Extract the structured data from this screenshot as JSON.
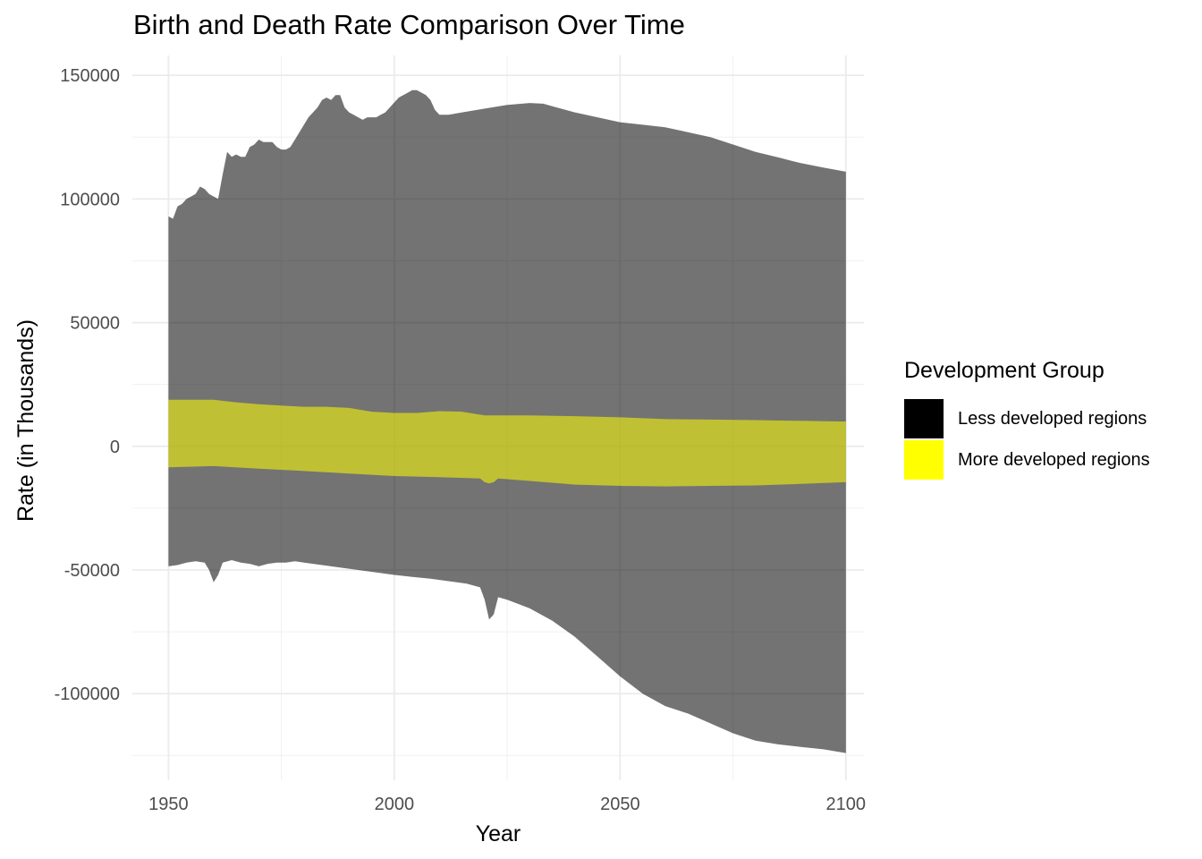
{
  "chart_data": {
    "type": "area",
    "title": "Birth and Death Rate Comparison Over Time",
    "xlabel": "Year",
    "ylabel": "Rate (in Thousands)",
    "xlim": [
      1942,
      2104
    ],
    "ylim": [
      -135000,
      158000
    ],
    "x_ticks": [
      1950,
      2000,
      2050,
      2100
    ],
    "x_tick_labels": [
      "1950",
      "2000",
      "2050",
      "2100"
    ],
    "y_ticks": [
      -100000,
      -50000,
      0,
      50000,
      100000,
      150000
    ],
    "y_tick_labels": [
      "-100000",
      "-50000",
      "0",
      "50000",
      "100000",
      "150000"
    ],
    "grid": true,
    "legend": {
      "title": "Development Group",
      "placement": "right",
      "entries": [
        {
          "label": "Less developed regions",
          "color": "#000000"
        },
        {
          "label": "More developed regions",
          "color": "#ffff00"
        }
      ]
    },
    "series": [
      {
        "name": "Less developed regions",
        "color": "#000000",
        "opacity": 0.55,
        "upper": [
          [
            1950,
            93000
          ],
          [
            1951,
            92000
          ],
          [
            1952,
            97000
          ],
          [
            1953,
            98000
          ],
          [
            1954,
            100000
          ],
          [
            1955,
            101000
          ],
          [
            1956,
            102000
          ],
          [
            1957,
            105000
          ],
          [
            1958,
            104000
          ],
          [
            1959,
            102000
          ],
          [
            1960,
            101000
          ],
          [
            1961,
            100000
          ],
          [
            1962,
            110000
          ],
          [
            1963,
            119000
          ],
          [
            1964,
            117000
          ],
          [
            1965,
            118000
          ],
          [
            1966,
            117000
          ],
          [
            1967,
            117000
          ],
          [
            1968,
            121000
          ],
          [
            1969,
            122000
          ],
          [
            1970,
            124000
          ],
          [
            1971,
            123000
          ],
          [
            1972,
            123000
          ],
          [
            1973,
            123000
          ],
          [
            1974,
            121000
          ],
          [
            1975,
            120000
          ],
          [
            1976,
            120000
          ],
          [
            1977,
            121000
          ],
          [
            1978,
            124000
          ],
          [
            1979,
            127000
          ],
          [
            1980,
            130000
          ],
          [
            1981,
            133000
          ],
          [
            1982,
            135000
          ],
          [
            1983,
            137000
          ],
          [
            1984,
            140000
          ],
          [
            1985,
            141000
          ],
          [
            1986,
            140000
          ],
          [
            1987,
            142000
          ],
          [
            1988,
            142000
          ],
          [
            1989,
            137000
          ],
          [
            1990,
            135000
          ],
          [
            1991,
            134000
          ],
          [
            1992,
            133000
          ],
          [
            1993,
            132000
          ],
          [
            1994,
            133000
          ],
          [
            1995,
            133000
          ],
          [
            1996,
            133000
          ],
          [
            1997,
            134000
          ],
          [
            1998,
            135000
          ],
          [
            1999,
            137000
          ],
          [
            2000,
            139000
          ],
          [
            2001,
            141000
          ],
          [
            2002,
            142000
          ],
          [
            2003,
            143000
          ],
          [
            2004,
            144000
          ],
          [
            2005,
            144000
          ],
          [
            2006,
            143000
          ],
          [
            2007,
            142000
          ],
          [
            2008,
            140000
          ],
          [
            2009,
            136000
          ],
          [
            2010,
            134000
          ],
          [
            2012,
            134000
          ],
          [
            2015,
            135000
          ],
          [
            2020,
            136500
          ],
          [
            2025,
            138000
          ],
          [
            2030,
            138800
          ],
          [
            2033,
            138500
          ],
          [
            2035,
            137500
          ],
          [
            2040,
            135000
          ],
          [
            2045,
            133000
          ],
          [
            2050,
            131000
          ],
          [
            2055,
            130000
          ],
          [
            2060,
            129000
          ],
          [
            2065,
            127000
          ],
          [
            2070,
            125000
          ],
          [
            2075,
            122000
          ],
          [
            2080,
            119000
          ],
          [
            2085,
            116800
          ],
          [
            2090,
            114500
          ],
          [
            2095,
            112700
          ],
          [
            2100,
            111000
          ]
        ],
        "lower": [
          [
            1950,
            -48500
          ],
          [
            1952,
            -48000
          ],
          [
            1954,
            -47000
          ],
          [
            1956,
            -46500
          ],
          [
            1958,
            -47000
          ],
          [
            1959,
            -50000
          ],
          [
            1960,
            -55000
          ],
          [
            1961,
            -52000
          ],
          [
            1962,
            -47000
          ],
          [
            1964,
            -46000
          ],
          [
            1966,
            -47000
          ],
          [
            1968,
            -47500
          ],
          [
            1970,
            -48500
          ],
          [
            1972,
            -47500
          ],
          [
            1974,
            -47000
          ],
          [
            1976,
            -47000
          ],
          [
            1978,
            -46500
          ],
          [
            1980,
            -47000
          ],
          [
            1984,
            -48000
          ],
          [
            1988,
            -49000
          ],
          [
            1992,
            -50000
          ],
          [
            1996,
            -51000
          ],
          [
            2000,
            -52000
          ],
          [
            2004,
            -52800
          ],
          [
            2008,
            -53500
          ],
          [
            2012,
            -54500
          ],
          [
            2016,
            -55500
          ],
          [
            2019,
            -57000
          ],
          [
            2020,
            -62000
          ],
          [
            2021,
            -70000
          ],
          [
            2022,
            -68000
          ],
          [
            2023,
            -61000
          ],
          [
            2025,
            -62000
          ],
          [
            2030,
            -65500
          ],
          [
            2035,
            -70500
          ],
          [
            2040,
            -77000
          ],
          [
            2045,
            -85000
          ],
          [
            2050,
            -93000
          ],
          [
            2055,
            -100000
          ],
          [
            2060,
            -105000
          ],
          [
            2065,
            -108000
          ],
          [
            2070,
            -112000
          ],
          [
            2075,
            -116000
          ],
          [
            2080,
            -119000
          ],
          [
            2085,
            -120500
          ],
          [
            2090,
            -121500
          ],
          [
            2095,
            -122500
          ],
          [
            2100,
            -124000
          ]
        ]
      },
      {
        "name": "More developed regions",
        "color": "#ffff00",
        "opacity": 0.55,
        "upper": [
          [
            1950,
            18800
          ],
          [
            1960,
            18800
          ],
          [
            1965,
            17800
          ],
          [
            1970,
            17000
          ],
          [
            1975,
            16500
          ],
          [
            1980,
            16000
          ],
          [
            1985,
            16000
          ],
          [
            1990,
            15500
          ],
          [
            1995,
            14000
          ],
          [
            2000,
            13500
          ],
          [
            2005,
            13500
          ],
          [
            2010,
            14200
          ],
          [
            2015,
            14000
          ],
          [
            2020,
            12500
          ],
          [
            2030,
            12500
          ],
          [
            2040,
            12200
          ],
          [
            2050,
            11700
          ],
          [
            2060,
            11000
          ],
          [
            2070,
            10800
          ],
          [
            2080,
            10600
          ],
          [
            2090,
            10300
          ],
          [
            2100,
            10000
          ]
        ],
        "lower": [
          [
            1950,
            -8500
          ],
          [
            1960,
            -8000
          ],
          [
            1970,
            -9000
          ],
          [
            1980,
            -10000
          ],
          [
            1990,
            -11000
          ],
          [
            2000,
            -12000
          ],
          [
            2010,
            -12500
          ],
          [
            2019,
            -13000
          ],
          [
            2020,
            -14500
          ],
          [
            2021,
            -15000
          ],
          [
            2022,
            -14500
          ],
          [
            2023,
            -13000
          ],
          [
            2030,
            -14000
          ],
          [
            2040,
            -15500
          ],
          [
            2050,
            -16000
          ],
          [
            2060,
            -16200
          ],
          [
            2070,
            -16000
          ],
          [
            2080,
            -15800
          ],
          [
            2090,
            -15200
          ],
          [
            2100,
            -14500
          ]
        ]
      }
    ]
  }
}
